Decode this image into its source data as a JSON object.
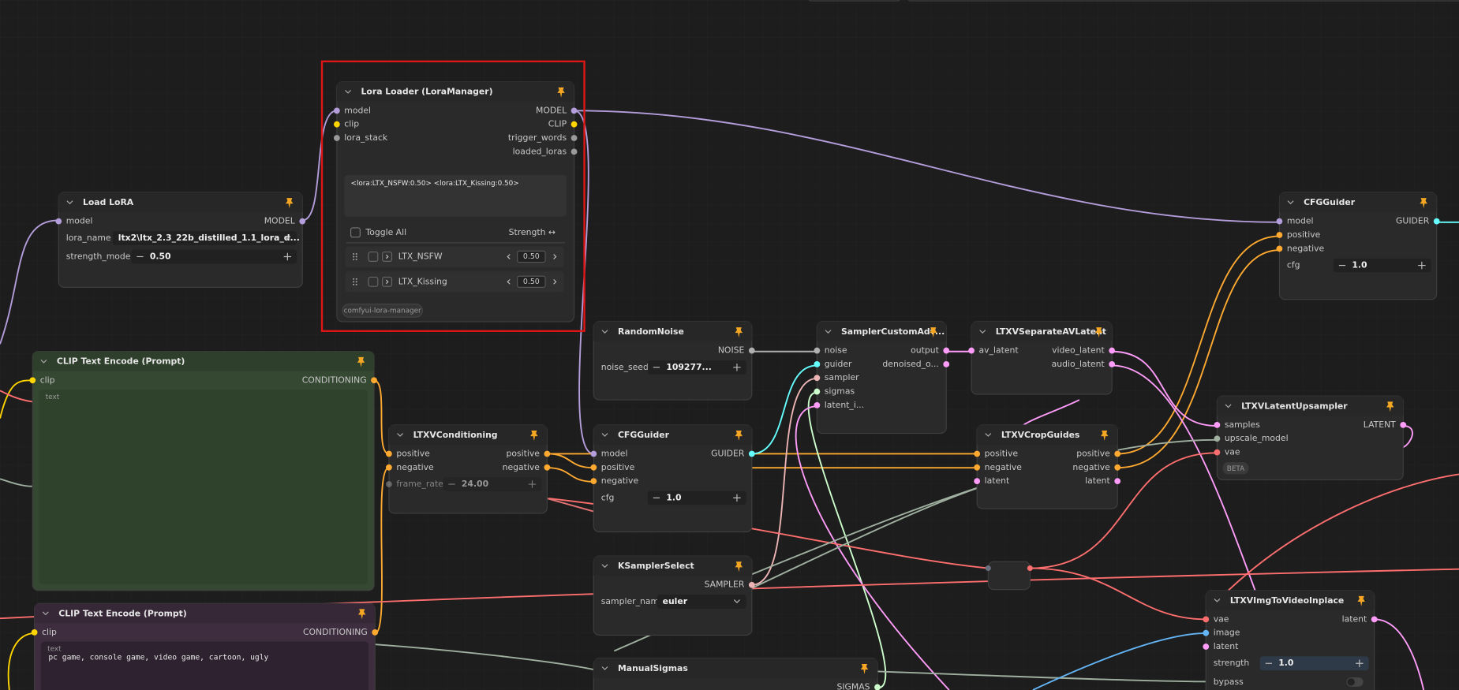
{
  "nodes": [
    {
      "title": "Lora Loader (LoraManager)",
      "inputs": [
        "model",
        "clip",
        "lora_stack"
      ],
      "outputs": [
        "MODEL",
        "CLIP",
        "trigger_words",
        "loaded_loras"
      ],
      "text": "<lora:LTX_NSFW:0.50> <lora:LTX_Kissing:0.50>",
      "toggle_all": "Toggle All",
      "strength_header": "Strength ↔",
      "loras": [
        {
          "name": "LTX_NSFW",
          "strength": "0.50"
        },
        {
          "name": "LTX_Kissing",
          "strength": "0.50"
        }
      ],
      "tag": "comfyui-lora-manager"
    },
    {
      "title": "Load LoRA",
      "inputs": [
        "model"
      ],
      "outputs": [
        "MODEL"
      ],
      "widgets": [
        {
          "name": "lora_name",
          "value": "ltx2\\ltx_2.3_22b_distilled_1.1_lora_d...",
          "kind": "combo"
        },
        {
          "name": "strength_model",
          "value": "0.50",
          "kind": "number"
        }
      ]
    },
    {
      "title": "CLIP Text Encode (Prompt)",
      "inputs": [
        "clip"
      ],
      "outputs": [
        "CONDITIONING"
      ],
      "text_label": "text"
    },
    {
      "title": "CLIP Text Encode (Prompt)",
      "inputs": [
        "clip"
      ],
      "outputs": [
        "CONDITIONING"
      ],
      "text_label": "text",
      "text": "pc game, console game, video game, cartoon, ugly"
    },
    {
      "title": "LTXVConditioning",
      "inputs": [
        "positive",
        "negative"
      ],
      "outputs": [
        "positive",
        "negative"
      ],
      "widgets": [
        {
          "name": "frame_rate",
          "value": "24.00",
          "kind": "number",
          "linked": true
        }
      ]
    },
    {
      "title": "RandomNoise",
      "outputs": [
        "NOISE"
      ],
      "widgets": [
        {
          "name": "noise_seed",
          "value": "109277...",
          "kind": "number"
        }
      ]
    },
    {
      "title": "CFGGuider",
      "inputs": [
        "model",
        "positive",
        "negative"
      ],
      "outputs": [
        "GUIDER"
      ],
      "widgets": [
        {
          "name": "cfg",
          "value": "1.0",
          "kind": "number"
        }
      ]
    },
    {
      "title": "KSamplerSelect",
      "outputs": [
        "SAMPLER"
      ],
      "widgets": [
        {
          "name": "sampler_name",
          "value": "euler",
          "kind": "combo"
        }
      ]
    },
    {
      "title": "ManualSigmas",
      "outputs": [
        "SIGMAS"
      ]
    },
    {
      "title": "SamplerCustomAdv...",
      "inputs": [
        "noise",
        "guider",
        "sampler",
        "sigmas",
        "latent_i..."
      ],
      "outputs": [
        "output",
        "denoised_o..."
      ]
    },
    {
      "title": "LTXVSeparateAVLatent",
      "inputs": [
        "av_latent"
      ],
      "outputs": [
        "video_latent",
        "audio_latent"
      ]
    },
    {
      "title": "LTXVCropGuides",
      "inputs": [
        "positive",
        "negative",
        "latent"
      ],
      "outputs": [
        "positive",
        "negative",
        "latent"
      ]
    },
    {
      "title": "CFGGuider",
      "inputs": [
        "model",
        "positive",
        "negative"
      ],
      "outputs": [
        "GUIDER"
      ],
      "widgets": [
        {
          "name": "cfg",
          "value": "1.0",
          "kind": "number"
        }
      ]
    },
    {
      "title": "LTXVLatentUpsampler",
      "inputs": [
        "samples",
        "upscale_model",
        "vae"
      ],
      "outputs": [
        "LATENT"
      ],
      "badge": "BETA"
    },
    {
      "title": "LTXVImgToVideoInplace",
      "inputs": [
        "vae",
        "image",
        "latent"
      ],
      "outputs": [
        "latent"
      ],
      "widgets": [
        {
          "name": "strength",
          "value": "1.0",
          "kind": "number"
        },
        {
          "name": "bypass",
          "value": false,
          "kind": "toggle"
        }
      ]
    }
  ]
}
